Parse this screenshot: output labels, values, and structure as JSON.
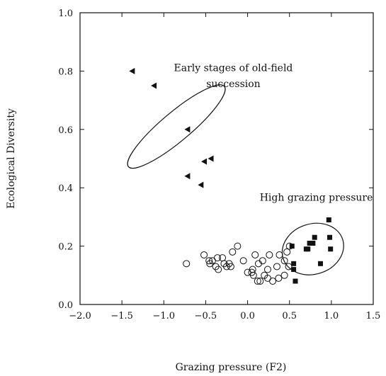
{
  "chart_data": {
    "type": "scatter",
    "title": "",
    "xlabel": "Grazing pressure (F2)",
    "ylabel": "Ecological Diversity",
    "xlim": [
      -2.0,
      1.5
    ],
    "ylim": [
      0.0,
      1.0
    ],
    "xticks": [
      "−2.0",
      "−1.5",
      "−1.0",
      "−0.5",
      "0.0",
      "0.5",
      "1.0",
      "1.5"
    ],
    "yticks": [
      "0.0",
      "0.2",
      "0.4",
      "0.6",
      "0.8",
      "1.0"
    ],
    "grid": false,
    "annotations": [
      {
        "text": "Early stages of old-field",
        "x": -0.17,
        "y": 0.8
      },
      {
        "text": "succession",
        "x": -0.17,
        "y": 0.745
      },
      {
        "text": "High grazing pressure",
        "x": 0.82,
        "y": 0.355
      }
    ],
    "series": [
      {
        "marker": "triangle-left",
        "points": [
          [
            -1.38,
            0.8
          ],
          [
            -1.12,
            0.75
          ],
          [
            -0.72,
            0.6
          ],
          [
            -0.52,
            0.49
          ],
          [
            -0.44,
            0.5
          ],
          [
            -0.72,
            0.44
          ],
          [
            -0.56,
            0.41
          ]
        ]
      },
      {
        "marker": "filled-square",
        "points": [
          [
            0.97,
            0.29
          ],
          [
            0.8,
            0.23
          ],
          [
            0.74,
            0.21
          ],
          [
            0.78,
            0.21
          ],
          [
            0.7,
            0.19
          ],
          [
            0.72,
            0.19
          ],
          [
            0.53,
            0.2
          ],
          [
            0.98,
            0.23
          ],
          [
            0.99,
            0.19
          ],
          [
            0.87,
            0.14
          ],
          [
            0.55,
            0.14
          ],
          [
            0.55,
            0.12
          ],
          [
            0.57,
            0.08
          ]
        ]
      },
      {
        "marker": "open-circle",
        "points": [
          [
            -0.73,
            0.14
          ],
          [
            -0.52,
            0.17
          ],
          [
            -0.46,
            0.15
          ],
          [
            -0.42,
            0.15
          ],
          [
            -0.36,
            0.16
          ],
          [
            -0.3,
            0.16
          ],
          [
            -0.45,
            0.14
          ],
          [
            -0.38,
            0.13
          ],
          [
            -0.28,
            0.14
          ],
          [
            -0.22,
            0.14
          ],
          [
            -0.25,
            0.13
          ],
          [
            -0.18,
            0.18
          ],
          [
            -0.12,
            0.2
          ],
          [
            -0.35,
            0.12
          ],
          [
            -0.2,
            0.13
          ],
          [
            -0.05,
            0.15
          ],
          [
            0.05,
            0.11
          ],
          [
            0.07,
            0.1
          ],
          [
            0.06,
            0.12
          ],
          [
            0.09,
            0.17
          ],
          [
            0.13,
            0.14
          ],
          [
            0.18,
            0.15
          ],
          [
            0.2,
            0.1
          ],
          [
            0.24,
            0.12
          ],
          [
            0.26,
            0.17
          ],
          [
            0.24,
            0.09
          ],
          [
            0.15,
            0.08
          ],
          [
            0.12,
            0.08
          ],
          [
            0.3,
            0.08
          ],
          [
            0.37,
            0.09
          ],
          [
            0.38,
            0.17
          ],
          [
            0.44,
            0.15
          ],
          [
            0.47,
            0.18
          ],
          [
            0.5,
            0.2
          ],
          [
            0.44,
            0.1
          ],
          [
            0.49,
            0.13
          ],
          [
            0.35,
            0.13
          ],
          [
            0.0,
            0.11
          ]
        ]
      }
    ],
    "ellipses": [
      {
        "cx": -0.85,
        "cy": 0.61,
        "rx": 0.63,
        "ry": 0.072,
        "angle_deg": -40
      },
      {
        "cx": 0.78,
        "cy": 0.19,
        "rx": 0.315,
        "ry": 0.125,
        "angle_deg": -18
      }
    ]
  }
}
